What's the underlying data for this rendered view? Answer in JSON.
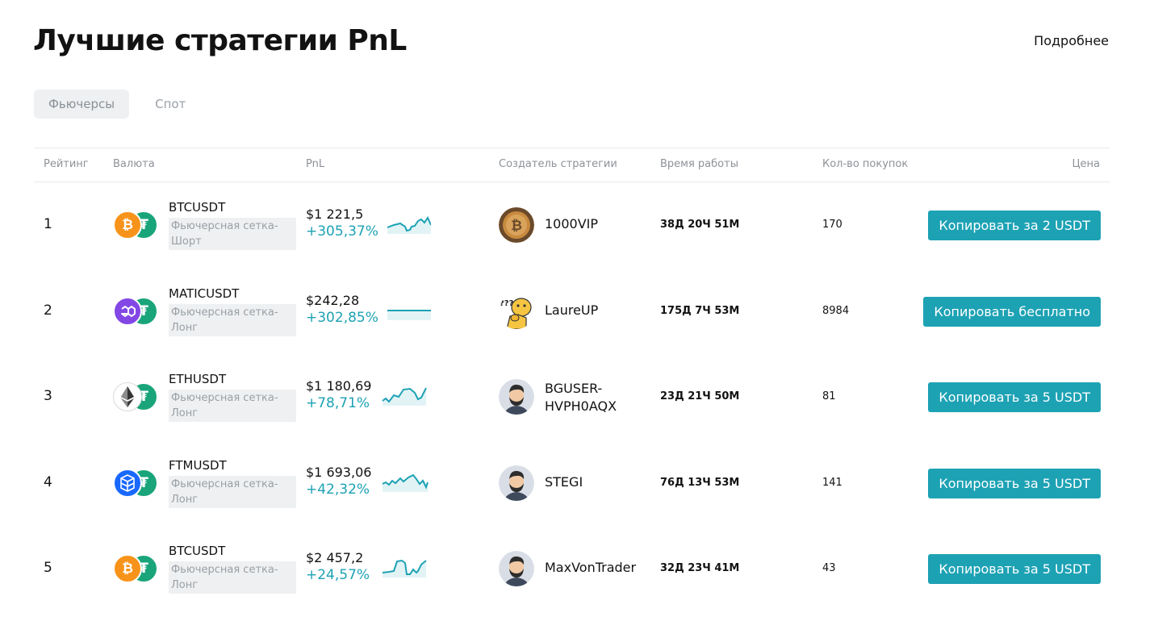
{
  "header": {
    "title": "Лучшие стратегии PnL",
    "more_link": "Подробнее"
  },
  "tabs": [
    {
      "label": "Фьючерсы",
      "active": true
    },
    {
      "label": "Спот",
      "active": false
    }
  ],
  "table": {
    "columns": {
      "rank": "Рейтинг",
      "currency": "Валюта",
      "pnl": "PnL",
      "creator": "Создатель стратегии",
      "runtime": "Время работы",
      "buys": "Кол-во покупок",
      "price": "Цена"
    },
    "rows": [
      {
        "rank": "1",
        "pair": "BTCUSDT",
        "tag": "Фьючерсная сетка-Шорт",
        "base_icon": "bitcoin-icon",
        "quote_icon": "tether-icon",
        "pnl_usd": "$1 221,5",
        "pnl_pct": "+305,37%",
        "creator": "1000VIP",
        "avatar": "bitcoin-coin-avatar",
        "runtime": "38Д 20Ч 51М",
        "buys": "170",
        "button": "Копировать за 2 USDT"
      },
      {
        "rank": "2",
        "pair": "MATICUSDT",
        "tag": "Фьючерсная сетка-Лонг",
        "base_icon": "polygon-icon",
        "quote_icon": "tether-icon",
        "pnl_usd": "$242,28",
        "pnl_pct": "+302,85%",
        "creator": "LaureUP",
        "avatar": "thinking-doge-avatar",
        "runtime": "175Д 7Ч 53М",
        "buys": "8984",
        "button": "Копировать бесплатно"
      },
      {
        "rank": "3",
        "pair": "ETHUSDT",
        "tag": "Фьючерсная сетка-Лонг",
        "base_icon": "ethereum-icon",
        "quote_icon": "tether-icon",
        "pnl_usd": "$1 180,69",
        "pnl_pct": "+78,71%",
        "creator": "BGUSER-HVPH0AQX",
        "avatar": "bearded-man-avatar",
        "runtime": "23Д 21Ч 50М",
        "buys": "81",
        "button": "Копировать за 5 USDT"
      },
      {
        "rank": "4",
        "pair": "FTMUSDT",
        "tag": "Фьючерсная сетка-Лонг",
        "base_icon": "fantom-icon",
        "quote_icon": "tether-icon",
        "pnl_usd": "$1 693,06",
        "pnl_pct": "+42,32%",
        "creator": "STEGI",
        "avatar": "bearded-man-avatar",
        "runtime": "76Д 13Ч 53М",
        "buys": "141",
        "button": "Копировать за 5 USDT"
      },
      {
        "rank": "5",
        "pair": "BTCUSDT",
        "tag": "Фьючерсная сетка-Лонг",
        "base_icon": "bitcoin-icon",
        "quote_icon": "tether-icon",
        "pnl_usd": "$2 457,2",
        "pnl_pct": "+24,57%",
        "creator": "MaxVonTrader",
        "avatar": "bearded-man-avatar",
        "runtime": "32Д 23Ч 41М",
        "buys": "43",
        "button": "Копировать за 5 USDT"
      }
    ]
  },
  "colors": {
    "accent": "#1da2b4",
    "tether": "#1aa47a",
    "bitcoin": "#f7931a",
    "polygon": "#8247e5",
    "fantom": "#1969ff"
  }
}
